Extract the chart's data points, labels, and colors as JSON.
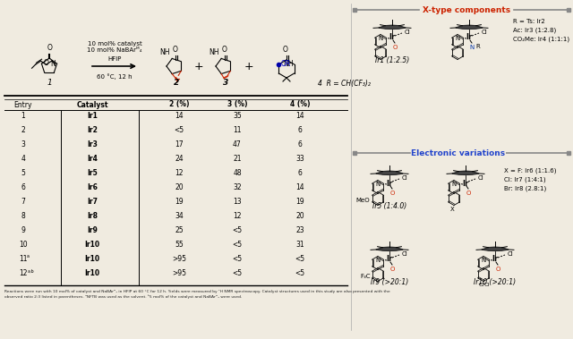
{
  "bg_color": "#f0ebe0",
  "title_x_type": "X-type components",
  "title_electronic": "Electronic variations",
  "reaction_line1": "10 mol% catalyst",
  "reaction_line2": "10 mol% NaBAr",
  "reaction_line2b": "F",
  "reaction_line2c": "4",
  "reaction_line3": "HFIP",
  "reaction_line4": "60 °C, 12 h",
  "table_headers": [
    "Entry",
    "Catalyst",
    "2 (%)",
    "3 (%)",
    "4 (%)"
  ],
  "table_data": [
    [
      "1",
      "Ir1",
      "14",
      "35",
      "14"
    ],
    [
      "2",
      "Ir2",
      "<5",
      "11",
      "6"
    ],
    [
      "3",
      "Ir3",
      "17",
      "47",
      "6"
    ],
    [
      "4",
      "Ir4",
      "24",
      "21",
      "33"
    ],
    [
      "5",
      "Ir5",
      "12",
      "48",
      "6"
    ],
    [
      "6",
      "Ir6",
      "20",
      "32",
      "14"
    ],
    [
      "7",
      "Ir7",
      "19",
      "13",
      "19"
    ],
    [
      "8",
      "Ir8",
      "34",
      "12",
      "20"
    ],
    [
      "9",
      "Ir9",
      "25",
      "<5",
      "23"
    ],
    [
      "10",
      "Ir10",
      "55",
      "<5",
      "31"
    ],
    [
      "11a",
      "Ir10",
      ">95",
      "<5",
      "<5"
    ],
    [
      "12a,b",
      "Ir10",
      ">95",
      "<5",
      "<5"
    ]
  ],
  "footnote1": "Reactions were run with 10 mol% of catalyst and NaBArᴹ₄ in HFIP at 60 °C for 12 h. Yields were measured by ¹H NMR spectroscopy. Catalyst structures used in this study are also presented with the",
  "footnote2": "observed ratio 2:3 listed in parentheses. ᵃNFTB was used as the solvent. ᵇ5 mol% of the catalyst and NaBArᴹ₄ were used.",
  "r_labels": [
    "R = Ts: Ir2",
    "Ac: Ir3 (1:2.8)",
    "CO₂Me: Ir4 (1:1:1)"
  ],
  "x_labels": [
    "X = F: Ir6 (1:1.6)",
    "Cl: Ir7 (1:4:1)",
    "Br: Ir8 (2.8:1)"
  ],
  "ir1_label": "Ir1 (1:2.5)",
  "ir5_label": "Ir5 (1:4.0)",
  "ir9_label": "Ir9 (>20:1)",
  "ir10_label": "Ir10 (>20:1)"
}
